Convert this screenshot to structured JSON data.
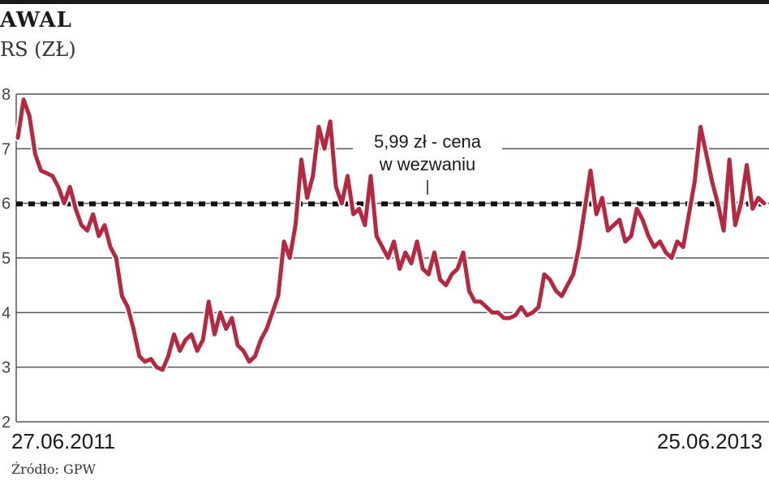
{
  "header": {
    "title": "AWAL",
    "subtitle": "RS (ZŁ)"
  },
  "source": "Źródło: GPW",
  "colors": {
    "series": "#b5283f",
    "grid": "#555555",
    "reference": "#111111"
  },
  "chart_data": {
    "type": "line",
    "title": "",
    "ylim": [
      2,
      8
    ],
    "yticks": [
      2,
      3,
      4,
      5,
      6,
      7,
      8
    ],
    "ytick_labels": [
      "2",
      "3",
      "4",
      "5",
      "6",
      "7",
      "8"
    ],
    "x_labels": {
      "start": "27.06.2011",
      "end": "25.06.2013"
    },
    "grid": "horizontal",
    "reference_line": {
      "value": 5.99,
      "label_line1": "5,99 zł - cena",
      "label_line2": "w wezwaniu"
    },
    "series": [
      {
        "values": [
          7.2,
          7.9,
          7.6,
          6.9,
          6.6,
          6.55,
          6.5,
          6.3,
          6.0,
          6.3,
          5.9,
          5.6,
          5.5,
          5.8,
          5.4,
          5.6,
          5.2,
          5.0,
          4.3,
          4.1,
          3.7,
          3.2,
          3.1,
          3.15,
          3.0,
          2.95,
          3.2,
          3.6,
          3.3,
          3.5,
          3.6,
          3.3,
          3.5,
          4.2,
          3.6,
          4.0,
          3.7,
          3.9,
          3.4,
          3.3,
          3.1,
          3.2,
          3.5,
          3.7,
          4.0,
          4.3,
          5.3,
          5.0,
          5.6,
          6.8,
          6.1,
          6.5,
          7.4,
          7.0,
          7.5,
          6.3,
          6.0,
          6.5,
          5.8,
          5.9,
          5.6,
          6.5,
          5.4,
          5.2,
          5.0,
          5.3,
          4.8,
          5.1,
          4.9,
          5.3,
          4.8,
          4.7,
          5.1,
          4.6,
          4.5,
          4.7,
          4.8,
          5.1,
          4.4,
          4.2,
          4.2,
          4.1,
          4.0,
          4.0,
          3.9,
          3.9,
          3.95,
          4.1,
          3.95,
          4.0,
          4.1,
          4.7,
          4.6,
          4.4,
          4.3,
          4.5,
          4.7,
          5.2,
          5.9,
          6.6,
          5.8,
          6.1,
          5.5,
          5.6,
          5.7,
          5.3,
          5.4,
          5.9,
          5.7,
          5.4,
          5.2,
          5.3,
          5.1,
          5.0,
          5.3,
          5.2,
          5.8,
          6.4,
          7.4,
          6.9,
          6.4,
          6.0,
          5.5,
          6.8,
          5.6,
          6.0,
          6.7,
          5.9,
          6.1,
          6.0
        ]
      }
    ]
  }
}
